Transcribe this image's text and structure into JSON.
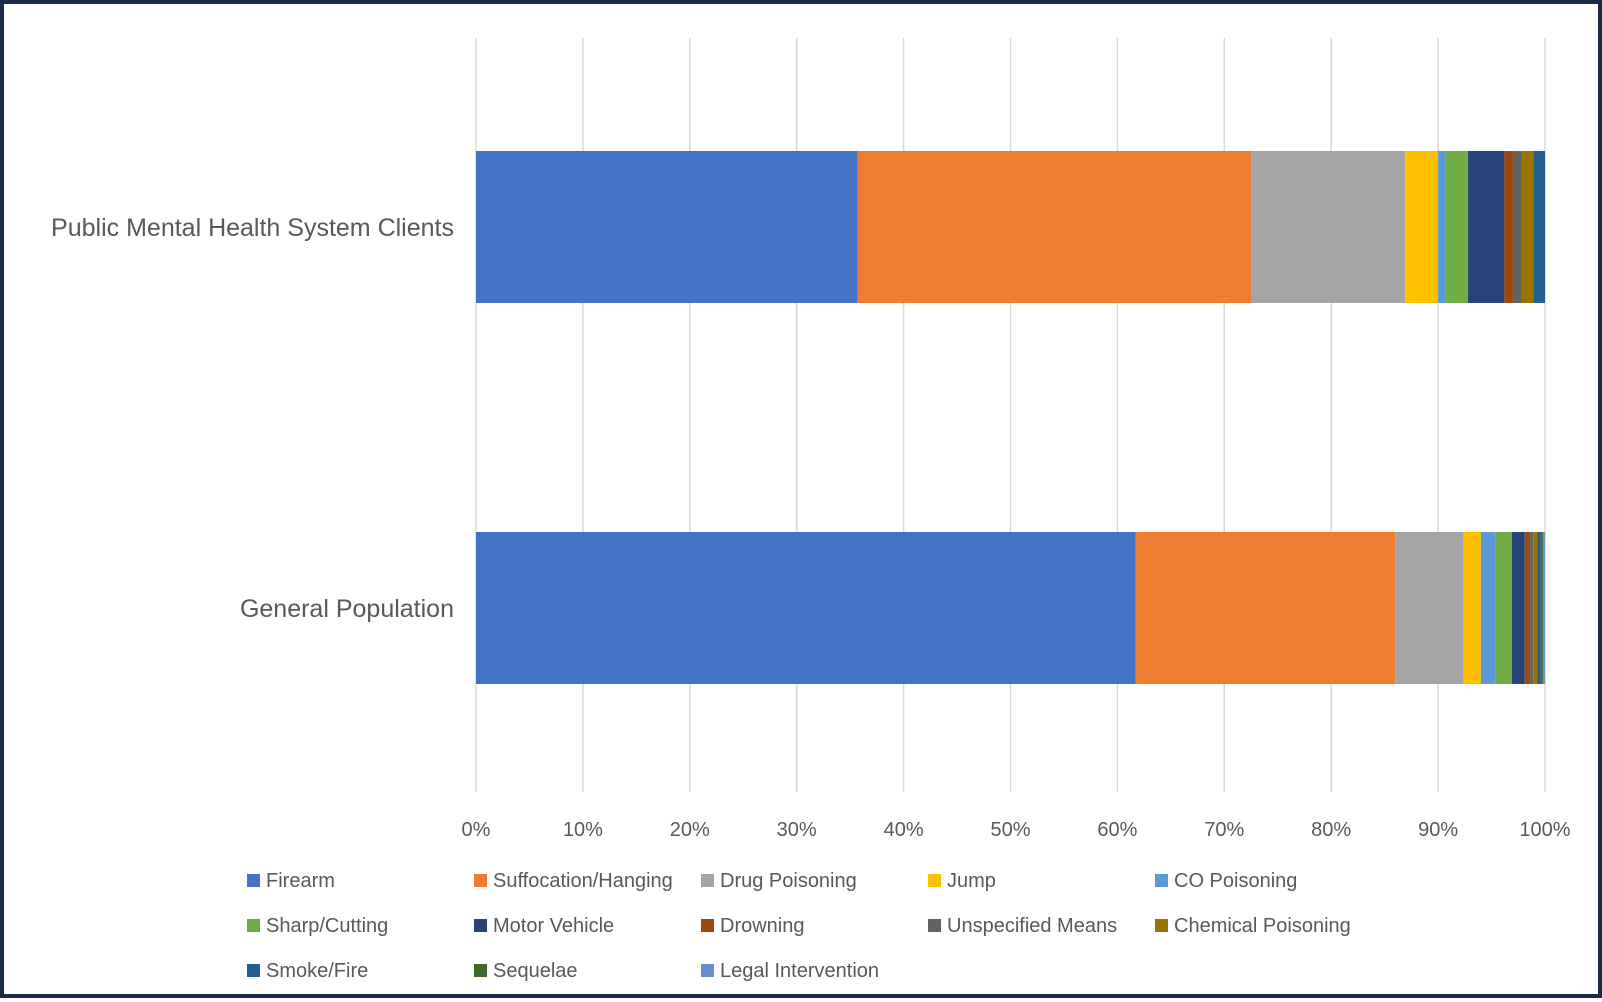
{
  "chart_data": {
    "type": "bar",
    "orientation": "horizontal",
    "stacked": "percent",
    "categories": [
      "Public Mental Health System Clients",
      "General Population"
    ],
    "series": [
      {
        "name": "Firearm",
        "color": "#4472C4",
        "values": [
          35.7,
          61.7
        ]
      },
      {
        "name": "Suffocation/Hanging",
        "color": "#ED7D31",
        "values": [
          36.8,
          24.3
        ]
      },
      {
        "name": "Drug Poisoning",
        "color": "#A5A5A5",
        "values": [
          14.4,
          6.4
        ]
      },
      {
        "name": "Jump",
        "color": "#FFC000",
        "values": [
          3.1,
          1.6
        ]
      },
      {
        "name": "CO Poisoning",
        "color": "#5B9BD5",
        "values": [
          0.7,
          1.4
        ]
      },
      {
        "name": "Sharp/Cutting",
        "color": "#70AD47",
        "values": [
          2.1,
          1.5
        ]
      },
      {
        "name": "Motor Vehicle",
        "color": "#264478",
        "values": [
          3.4,
          1.2
        ]
      },
      {
        "name": "Drowning",
        "color": "#9E480E",
        "values": [
          0.8,
          0.5
        ]
      },
      {
        "name": "Unspecified Means",
        "color": "#636363",
        "values": [
          0.8,
          0.3
        ]
      },
      {
        "name": "Chemical Poisoning",
        "color": "#997300",
        "values": [
          1.1,
          0.4
        ]
      },
      {
        "name": "Smoke/Fire",
        "color": "#255E91",
        "values": [
          1.1,
          0.3
        ]
      },
      {
        "name": "Sequelae",
        "color": "#43682B",
        "values": [
          0.0,
          0.2
        ]
      },
      {
        "name": "Legal Intervention",
        "color": "#698ED0",
        "values": [
          0.0,
          0.2
        ]
      }
    ],
    "xlim": [
      0,
      100
    ],
    "xticks": [
      "0%",
      "10%",
      "20%",
      "30%",
      "40%",
      "50%",
      "60%",
      "70%",
      "80%",
      "90%",
      "100%"
    ],
    "grid": true,
    "legend_position": "bottom"
  }
}
